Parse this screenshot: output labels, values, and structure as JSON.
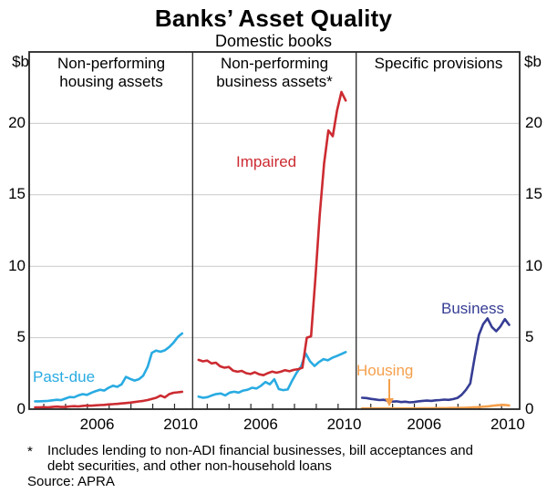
{
  "header": {
    "title": "Banks’ Asset Quality",
    "subtitle": "Domestic books"
  },
  "axis": {
    "unit_left": "$b",
    "unit_right": "$b",
    "yticks": [
      "20",
      "15",
      "10",
      "5",
      "0"
    ]
  },
  "colors": {
    "past_due": "#29ABE2",
    "impaired": "#CC2B31",
    "business": "#363D94",
    "housing": "#F5A04C",
    "gridline": "#C9C9C9",
    "frame": "#262626"
  },
  "footnote": {
    "marker": "*",
    "line1": "Includes lending to non-ADI financial businesses, bill acceptances and",
    "line2": "debt securities, and other non-household loans",
    "source": "Source: APRA"
  },
  "chart_data": [
    {
      "type": "line",
      "panel_title_line1": "Non-performing",
      "panel_title_line2": "housing assets",
      "xlim": [
        2003.33,
        2010.83
      ],
      "ylim": [
        0,
        25
      ],
      "ytick_values": [
        0,
        5,
        10,
        15,
        20
      ],
      "xtick_minor_years": [
        2004,
        2005,
        2006,
        2007,
        2008,
        2009,
        2010
      ],
      "xtick_labels": [
        "2006",
        "2010"
      ],
      "xtick_label_positions": [
        2006.45,
        2010.28
      ],
      "grid": true,
      "series": [
        {
          "name": "Past-due housing assets",
          "label": "Past-due",
          "color": "#29ABE2",
          "x_start": 2003.6,
          "x_end": 2010.35,
          "values": [
            0.55,
            0.55,
            0.56,
            0.58,
            0.62,
            0.66,
            0.63,
            0.74,
            0.85,
            0.83,
            0.96,
            1.05,
            1.0,
            1.14,
            1.26,
            1.36,
            1.3,
            1.5,
            1.64,
            1.56,
            1.74,
            2.26,
            2.12,
            2.0,
            2.1,
            2.35,
            2.95,
            3.95,
            4.1,
            4.02,
            4.12,
            4.35,
            4.65,
            5.05,
            5.3
          ]
        },
        {
          "name": "Impaired housing assets",
          "label": "",
          "color": "#CC2B31",
          "x_start": 2003.6,
          "x_end": 2010.35,
          "values": [
            0.13,
            0.13,
            0.14,
            0.13,
            0.15,
            0.18,
            0.15,
            0.15,
            0.19,
            0.21,
            0.19,
            0.23,
            0.25,
            0.24,
            0.27,
            0.29,
            0.3,
            0.33,
            0.35,
            0.37,
            0.4,
            0.43,
            0.46,
            0.5,
            0.54,
            0.58,
            0.64,
            0.72,
            0.8,
            0.95,
            0.82,
            1.05,
            1.15,
            1.18,
            1.22
          ]
        }
      ]
    },
    {
      "type": "line",
      "panel_title_line1": "Non-performing",
      "panel_title_line2": "business assets*",
      "xlim": [
        2003.33,
        2010.83
      ],
      "ylim": [
        0,
        25
      ],
      "ytick_values": [
        0,
        5,
        10,
        15,
        20
      ],
      "xtick_minor_years": [
        2004,
        2005,
        2006,
        2007,
        2008,
        2009,
        2010
      ],
      "xtick_labels": [
        "2006",
        "2010"
      ],
      "xtick_label_positions": [
        2006.45,
        2010.28
      ],
      "grid": true,
      "series": [
        {
          "name": "Impaired business assets",
          "label": "Impaired",
          "color": "#CC2B31",
          "x_start": 2003.6,
          "x_end": 2010.35,
          "values": [
            3.45,
            3.35,
            3.4,
            3.2,
            3.25,
            3.0,
            2.9,
            2.95,
            2.7,
            2.62,
            2.68,
            2.52,
            2.46,
            2.58,
            2.44,
            2.38,
            2.52,
            2.63,
            2.55,
            2.62,
            2.73,
            2.65,
            2.75,
            2.8,
            2.9,
            5.0,
            5.1,
            9.2,
            13.6,
            17.2,
            19.5,
            19.1,
            20.9,
            22.2,
            21.6
          ]
        },
        {
          "name": "Past-due business assets",
          "label": "",
          "color": "#29ABE2",
          "x_start": 2003.6,
          "x_end": 2010.35,
          "values": [
            0.88,
            0.8,
            0.84,
            0.96,
            1.06,
            1.1,
            0.96,
            1.16,
            1.22,
            1.16,
            1.3,
            1.36,
            1.5,
            1.45,
            1.64,
            1.9,
            1.74,
            2.1,
            1.4,
            1.33,
            1.38,
            2.0,
            2.55,
            3.0,
            3.9,
            3.35,
            3.02,
            3.3,
            3.5,
            3.42,
            3.6,
            3.72,
            3.85,
            4.0
          ]
        }
      ]
    },
    {
      "type": "line",
      "panel_title_line1": "Specific provisions",
      "panel_title_line2": "",
      "xlim": [
        2003.33,
        2010.83
      ],
      "ylim": [
        0,
        25
      ],
      "ytick_values": [
        0,
        5,
        10,
        15,
        20
      ],
      "xtick_minor_years": [
        2004,
        2005,
        2006,
        2007,
        2008,
        2009,
        2010
      ],
      "xtick_labels": [
        "2006",
        "2010"
      ],
      "xtick_label_positions": [
        2006.45,
        2010.28
      ],
      "grid": true,
      "series": [
        {
          "name": "Specific provisions – business",
          "label": "Business",
          "color": "#363D94",
          "x_start": 2003.6,
          "x_end": 2010.35,
          "values": [
            0.8,
            0.78,
            0.72,
            0.68,
            0.64,
            0.66,
            0.58,
            0.53,
            0.55,
            0.5,
            0.52,
            0.48,
            0.5,
            0.55,
            0.58,
            0.6,
            0.58,
            0.62,
            0.64,
            0.67,
            0.65,
            0.7,
            0.78,
            1.0,
            1.35,
            1.8,
            3.6,
            5.2,
            5.95,
            6.35,
            5.75,
            5.45,
            5.8,
            6.3,
            5.9
          ]
        },
        {
          "name": "Specific provisions – housing",
          "label": "Housing",
          "color": "#F5A04C",
          "x_start": 2003.6,
          "x_end": 2010.35,
          "values": [
            0.05,
            0.05,
            0.05,
            0.05,
            0.05,
            0.05,
            0.05,
            0.05,
            0.05,
            0.05,
            0.05,
            0.06,
            0.06,
            0.06,
            0.07,
            0.07,
            0.07,
            0.08,
            0.08,
            0.09,
            0.1,
            0.12,
            0.14,
            0.17,
            0.2,
            0.24,
            0.28,
            0.3,
            0.26
          ]
        }
      ]
    }
  ]
}
